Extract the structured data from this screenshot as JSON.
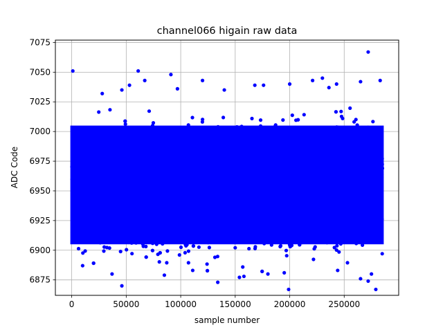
{
  "chart_data": {
    "type": "scatter",
    "title": "channel066 higain raw data",
    "xlabel": "sample number",
    "ylabel": "ADC Code",
    "xlim": [
      -15000,
      300000
    ],
    "ylim": [
      6862,
      7077
    ],
    "x_ticks": [
      0,
      50000,
      100000,
      150000,
      200000,
      250000
    ],
    "y_ticks": [
      6875,
      6900,
      6925,
      6950,
      6975,
      7000,
      7025,
      7050,
      7075
    ],
    "grid": true,
    "marker_color": "#0000ff",
    "series": [
      {
        "x_range": [
          0,
          285000
        ],
        "dense_band": [
          6905,
          7005
        ],
        "full_spread": [
          6885,
          7022
        ],
        "outliers": [
          {
            "x": 1000,
            "y": 7051
          },
          {
            "x": 61000,
            "y": 7051
          },
          {
            "x": 91000,
            "y": 7048
          },
          {
            "x": 272000,
            "y": 7067
          },
          {
            "x": 230000,
            "y": 7045
          },
          {
            "x": 221000,
            "y": 7043
          },
          {
            "x": 120000,
            "y": 7043
          },
          {
            "x": 265000,
            "y": 7042
          },
          {
            "x": 283000,
            "y": 7043
          },
          {
            "x": 200000,
            "y": 7040
          },
          {
            "x": 168000,
            "y": 7039
          },
          {
            "x": 176000,
            "y": 7039
          },
          {
            "x": 243000,
            "y": 7040
          },
          {
            "x": 53000,
            "y": 7039
          },
          {
            "x": 236000,
            "y": 7037
          },
          {
            "x": 97000,
            "y": 7036
          },
          {
            "x": 140000,
            "y": 7035
          },
          {
            "x": 28000,
            "y": 7032
          },
          {
            "x": 46000,
            "y": 7035
          },
          {
            "x": 67000,
            "y": 7043
          },
          {
            "x": 46000,
            "y": 6870
          },
          {
            "x": 199000,
            "y": 6867
          },
          {
            "x": 279000,
            "y": 6867
          },
          {
            "x": 134000,
            "y": 6873
          },
          {
            "x": 37000,
            "y": 6880
          },
          {
            "x": 272000,
            "y": 6874
          },
          {
            "x": 265000,
            "y": 6876
          },
          {
            "x": 158000,
            "y": 6878
          },
          {
            "x": 195000,
            "y": 6881
          },
          {
            "x": 180000,
            "y": 6880
          },
          {
            "x": 85000,
            "y": 6879
          },
          {
            "x": 10000,
            "y": 6887
          },
          {
            "x": 111000,
            "y": 6883
          },
          {
            "x": 244000,
            "y": 6883
          },
          {
            "x": 275000,
            "y": 6880
          }
        ]
      }
    ]
  }
}
